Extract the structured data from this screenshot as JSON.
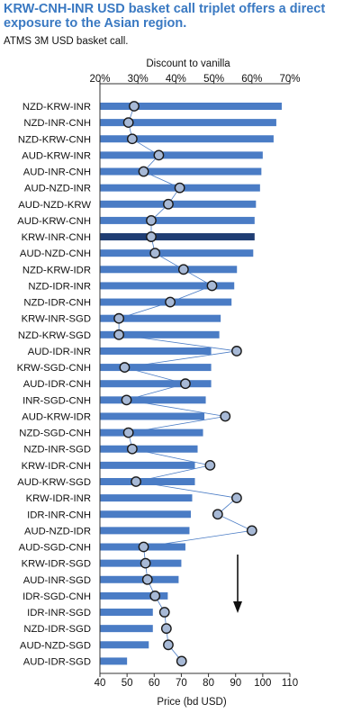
{
  "title": "KRW-CNH-INR USD basket call triplet offers a direct exposure to the Asian region.",
  "subtitle": "ATMS 3M USD basket call.",
  "chart_data": {
    "type": "bar",
    "orientation": "horizontal",
    "categories": [
      "NZD-KRW-INR",
      "NZD-INR-CNH",
      "NZD-KRW-CNH",
      "AUD-KRW-INR",
      "AUD-INR-CNH",
      "AUD-NZD-INR",
      "AUD-NZD-KRW",
      "AUD-KRW-CNH",
      "KRW-INR-CNH",
      "AUD-NZD-CNH",
      "NZD-KRW-IDR",
      "NZD-IDR-INR",
      "NZD-IDR-CNH",
      "KRW-INR-SGD",
      "NZD-KRW-SGD",
      "AUD-IDR-INR",
      "KRW-SGD-CNH",
      "AUD-IDR-CNH",
      "INR-SGD-CNH",
      "AUD-KRW-IDR",
      "NZD-SGD-CNH",
      "NZD-INR-SGD",
      "KRW-IDR-CNH",
      "AUD-KRW-SGD",
      "KRW-IDR-INR",
      "IDR-INR-CNH",
      "AUD-NZD-IDR",
      "AUD-SGD-CNH",
      "KRW-IDR-SGD",
      "AUD-INR-SGD",
      "IDR-SGD-CNH",
      "IDR-INR-SGD",
      "NZD-IDR-SGD",
      "AUD-NZD-SGD",
      "AUD-IDR-SGD"
    ],
    "highlight_category": "KRW-INR-CNH",
    "series": [
      {
        "type": "bar",
        "axis": "bottom",
        "color": "#4a7cc5",
        "highlight_color": "#1f3d73",
        "values": [
          107,
          105,
          104,
          100,
          99.5,
          99,
          97.5,
          97,
          97,
          96.5,
          90.5,
          89.5,
          88.5,
          84.5,
          84,
          81,
          81,
          81,
          79,
          78.5,
          78,
          76,
          75,
          75,
          74,
          73.5,
          73,
          71.5,
          70,
          69,
          65,
          59.5,
          59.5,
          58,
          50
        ]
      },
      {
        "type": "scatter-line",
        "axis": "top",
        "color": "#a7b9d6",
        "line_color": "#4a7cc5",
        "values": [
          29,
          27.5,
          28.5,
          35.5,
          31.5,
          41,
          38,
          33.5,
          33.5,
          34.5,
          42,
          49.5,
          38.5,
          25,
          25,
          56,
          26.5,
          42.5,
          27,
          53,
          27.5,
          28.5,
          49,
          29.5,
          56,
          51,
          60,
          31.5,
          32,
          32.5,
          34.5,
          37,
          37.5,
          38,
          41.5
        ]
      }
    ],
    "x_bottom": {
      "label": "Price (bd USD)",
      "lim": [
        40,
        110
      ],
      "ticks": [
        40,
        50,
        60,
        70,
        80,
        90,
        100,
        110
      ]
    },
    "x_top": {
      "label": "Discount to vanilla",
      "lim": [
        20,
        70
      ],
      "ticks": [
        "20%",
        "30%",
        "40%",
        "50%",
        "60%",
        "70%"
      ]
    },
    "annotation": "arrow-down",
    "grid": false
  }
}
